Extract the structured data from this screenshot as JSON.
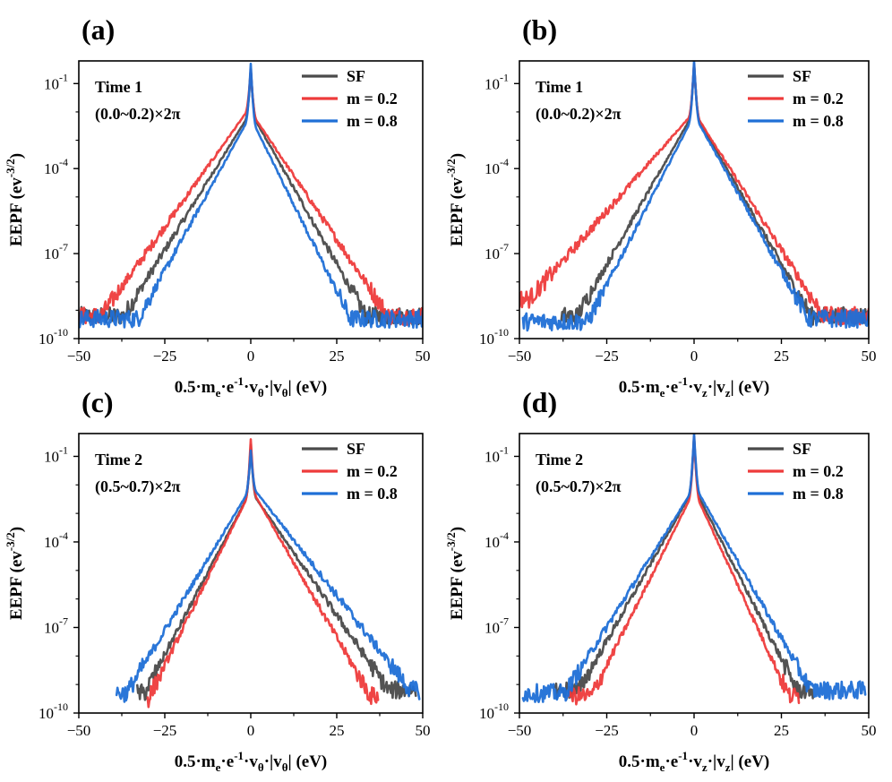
{
  "figure": {
    "series_styles": [
      {
        "name": "SF",
        "color": "#4a4a4a"
      },
      {
        "name": "m = 0.2",
        "color": "#ee3b3b"
      },
      {
        "name": "m = 0.8",
        "color": "#1f6fd6"
      }
    ]
  },
  "chart_data": [
    {
      "type": "line",
      "panel_label": "(a)",
      "xlabel": "0.5·m_e·e^-1·v_θ·|v_θ| (eV)",
      "xlabel_parts": {
        "a": "0.5·m",
        "a_sub": "e",
        "b": "·e",
        "b_sup": "-1",
        "c": "·v",
        "c_sub": "θ",
        "d": "·|v",
        "d_sub": "θ",
        "e": "| (eV)"
      },
      "ylabel": "EEPF (ev^-3/2)",
      "ylabel_parts": {
        "main": "EEPF (ev",
        "sup": "-3/2",
        "end": ")"
      },
      "xlim": [
        -50,
        50
      ],
      "ylim_log10": [
        -10,
        -0.2
      ],
      "xticks": [
        "−50",
        "−25",
        "0",
        "25",
        "50"
      ],
      "xtick_values": [
        -50,
        -25,
        0,
        25,
        50
      ],
      "yticks": [
        {
          "base": "10",
          "exp": "-10"
        },
        {
          "base": "10",
          "exp": "-7"
        },
        {
          "base": "10",
          "exp": "-4"
        },
        {
          "base": "10",
          "exp": "-1"
        }
      ],
      "ytick_values": [
        -10,
        -7,
        -4,
        -1
      ],
      "annotation_lines": [
        "Time 1",
        "(0.0~0.2)×2π"
      ],
      "legend": [
        "SF",
        "m = 0.2",
        "m = 0.8"
      ],
      "legend_position": "top-right",
      "series": [
        {
          "name": "SF",
          "peak_log10": -0.5,
          "left": {
            "core_log10": -2.0,
            "slope": 0.195,
            "floor_log10": -9.2,
            "end": -50
          },
          "right": {
            "core_log10": -2.0,
            "slope": 0.215,
            "floor_log10": -9.2,
            "end": 50
          }
        },
        {
          "name": "m = 0.2",
          "peak_log10": -0.5,
          "left": {
            "core_log10": -1.8,
            "slope": 0.17,
            "floor_log10": -9.2,
            "end": -50
          },
          "right": {
            "core_log10": -2.0,
            "slope": 0.18,
            "floor_log10": -9.2,
            "end": 50
          }
        },
        {
          "name": "m = 0.8",
          "peak_log10": -0.3,
          "left": {
            "core_log10": -2.1,
            "slope": 0.22,
            "floor_log10": -9.3,
            "end": -50
          },
          "right": {
            "core_log10": -2.2,
            "slope": 0.245,
            "floor_log10": -9.3,
            "end": 50
          }
        }
      ]
    },
    {
      "type": "line",
      "panel_label": "(b)",
      "xlabel": "0.5·m_e·e^-1·v_z·|v_z| (eV)",
      "xlabel_parts": {
        "a": "0.5·m",
        "a_sub": "e",
        "b": "·e",
        "b_sup": "-1",
        "c": "·v",
        "c_sub": "z",
        "d": "·|v",
        "d_sub": "z",
        "e": "| (eV)"
      },
      "ylabel": "EEPF (ev^-3/2)",
      "ylabel_parts": {
        "main": "EEPF (ev",
        "sup": "-3/2",
        "end": ")"
      },
      "xlim": [
        -50,
        50
      ],
      "ylim_log10": [
        -10,
        -0.2
      ],
      "xticks": [
        "−50",
        "−25",
        "0",
        "25",
        "50"
      ],
      "xtick_values": [
        -50,
        -25,
        0,
        25,
        50
      ],
      "yticks": [
        {
          "base": "10",
          "exp": "-10"
        },
        {
          "base": "10",
          "exp": "-7"
        },
        {
          "base": "10",
          "exp": "-4"
        },
        {
          "base": "10",
          "exp": "-1"
        }
      ],
      "ytick_values": [
        -10,
        -7,
        -4,
        -1
      ],
      "annotation_lines": [
        "Time 1",
        "(0.0~0.2)×2π"
      ],
      "legend": [
        "SF",
        "m = 0.2",
        "m = 0.8"
      ],
      "legend_position": "top-right",
      "series": [
        {
          "name": "SF",
          "peak_log10": -0.3,
          "left": {
            "core_log10": -2.0,
            "slope": 0.215,
            "floor_log10": -9.2,
            "end": -38
          },
          "right": {
            "core_log10": -2.0,
            "slope": 0.215,
            "floor_log10": -9.2,
            "end": 50
          }
        },
        {
          "name": "m = 0.2",
          "peak_log10": -0.3,
          "left": {
            "core_log10": -2.0,
            "slope": 0.14,
            "floor_log10": -8.6,
            "end": -50
          },
          "right": {
            "core_log10": -2.0,
            "slope": 0.195,
            "floor_log10": -9.2,
            "end": 50
          }
        },
        {
          "name": "m = 0.8",
          "peak_log10": -0.2,
          "left": {
            "core_log10": -2.1,
            "slope": 0.24,
            "floor_log10": -9.4,
            "end": -49
          },
          "right": {
            "core_log10": -2.1,
            "slope": 0.22,
            "floor_log10": -9.3,
            "end": 50
          }
        }
      ]
    },
    {
      "type": "line",
      "panel_label": "(c)",
      "xlabel": "0.5·m_e·e^-1·v_θ·|v_θ| (eV)",
      "xlabel_parts": {
        "a": "0.5·m",
        "a_sub": "e",
        "b": "·e",
        "b_sup": "-1",
        "c": "·v",
        "c_sub": "θ",
        "d": "·|v",
        "d_sub": "θ",
        "e": "| (eV)"
      },
      "ylabel": "EEPF (ev^-3/2)",
      "ylabel_parts": {
        "main": "EEPF (ev",
        "sup": "-3/2",
        "end": ")"
      },
      "xlim": [
        -50,
        50
      ],
      "ylim_log10": [
        -10,
        -0.2
      ],
      "xticks": [
        "−50",
        "−25",
        "0",
        "25",
        "50"
      ],
      "xtick_values": [
        -50,
        -25,
        0,
        25,
        50
      ],
      "yticks": [
        {
          "base": "10",
          "exp": "-10"
        },
        {
          "base": "10",
          "exp": "-7"
        },
        {
          "base": "10",
          "exp": "-4"
        },
        {
          "base": "10",
          "exp": "-1"
        }
      ],
      "ytick_values": [
        -10,
        -7,
        -4,
        -1
      ],
      "annotation_lines": [
        "Time 2",
        "(0.5~0.7)×2π"
      ],
      "legend": [
        "SF",
        "m = 0.2",
        "m = 0.8"
      ],
      "legend_position": "top-right",
      "series": [
        {
          "name": "SF",
          "peak_log10": -0.6,
          "left": {
            "core_log10": -2.2,
            "slope": 0.23,
            "floor_log10": -9.3,
            "end": -33
          },
          "right": {
            "core_log10": -2.2,
            "slope": 0.175,
            "floor_log10": -9.2,
            "end": 48
          }
        },
        {
          "name": "m = 0.2",
          "peak_log10": -0.4,
          "left": {
            "core_log10": -2.2,
            "slope": 0.245,
            "floor_log10": -9.5,
            "end": -30
          },
          "right": {
            "core_log10": -2.1,
            "slope": 0.21,
            "floor_log10": -9.4,
            "end": 37
          }
        },
        {
          "name": "m = 0.8",
          "peak_log10": -0.8,
          "left": {
            "core_log10": -2.1,
            "slope": 0.2,
            "floor_log10": -9.3,
            "end": -39
          },
          "right": {
            "core_log10": -2.0,
            "slope": 0.155,
            "floor_log10": -9.2,
            "end": 49
          }
        }
      ]
    },
    {
      "type": "line",
      "panel_label": "(d)",
      "xlabel": "0.5·m_e·e^-1·v_z·|v_z| (eV)",
      "xlabel_parts": {
        "a": "0.5·m",
        "a_sub": "e",
        "b": "·e",
        "b_sup": "-1",
        "c": "·v",
        "c_sub": "z",
        "d": "·|v",
        "d_sub": "z",
        "e": "| (eV)"
      },
      "ylabel": "EEPF (ev^-3/2)",
      "ylabel_parts": {
        "main": "EEPF (ev",
        "sup": "-3/2",
        "end": ")"
      },
      "xlim": [
        -50,
        50
      ],
      "ylim_log10": [
        -10,
        -0.2
      ],
      "xticks": [
        "−50",
        "−25",
        "0",
        "25",
        "50"
      ],
      "xtick_values": [
        -50,
        -25,
        0,
        25,
        50
      ],
      "yticks": [
        {
          "base": "10",
          "exp": "-10"
        },
        {
          "base": "10",
          "exp": "-7"
        },
        {
          "base": "10",
          "exp": "-4"
        },
        {
          "base": "10",
          "exp": "-1"
        }
      ],
      "ytick_values": [
        -10,
        -7,
        -4,
        -1
      ],
      "annotation_lines": [
        "Time 2",
        "(0.5~0.7)×2π"
      ],
      "legend": [
        "SF",
        "m = 0.2",
        "m = 0.8"
      ],
      "legend_position": "top-right",
      "series": [
        {
          "name": "SF",
          "peak_log10": -0.3,
          "left": {
            "core_log10": -2.1,
            "slope": 0.215,
            "floor_log10": -9.2,
            "end": -40
          },
          "right": {
            "core_log10": -2.1,
            "slope": 0.24,
            "floor_log10": -9.2,
            "end": 34
          }
        },
        {
          "name": "m = 0.2",
          "peak_log10": -0.3,
          "left": {
            "core_log10": -2.2,
            "slope": 0.245,
            "floor_log10": -9.4,
            "end": -36
          },
          "right": {
            "core_log10": -2.2,
            "slope": 0.265,
            "floor_log10": -9.4,
            "end": 30
          }
        },
        {
          "name": "m = 0.8",
          "peak_log10": -0.2,
          "left": {
            "core_log10": -2.1,
            "slope": 0.195,
            "floor_log10": -9.3,
            "end": -49
          },
          "right": {
            "core_log10": -2.0,
            "slope": 0.215,
            "floor_log10": -9.2,
            "end": 49
          }
        }
      ]
    }
  ]
}
